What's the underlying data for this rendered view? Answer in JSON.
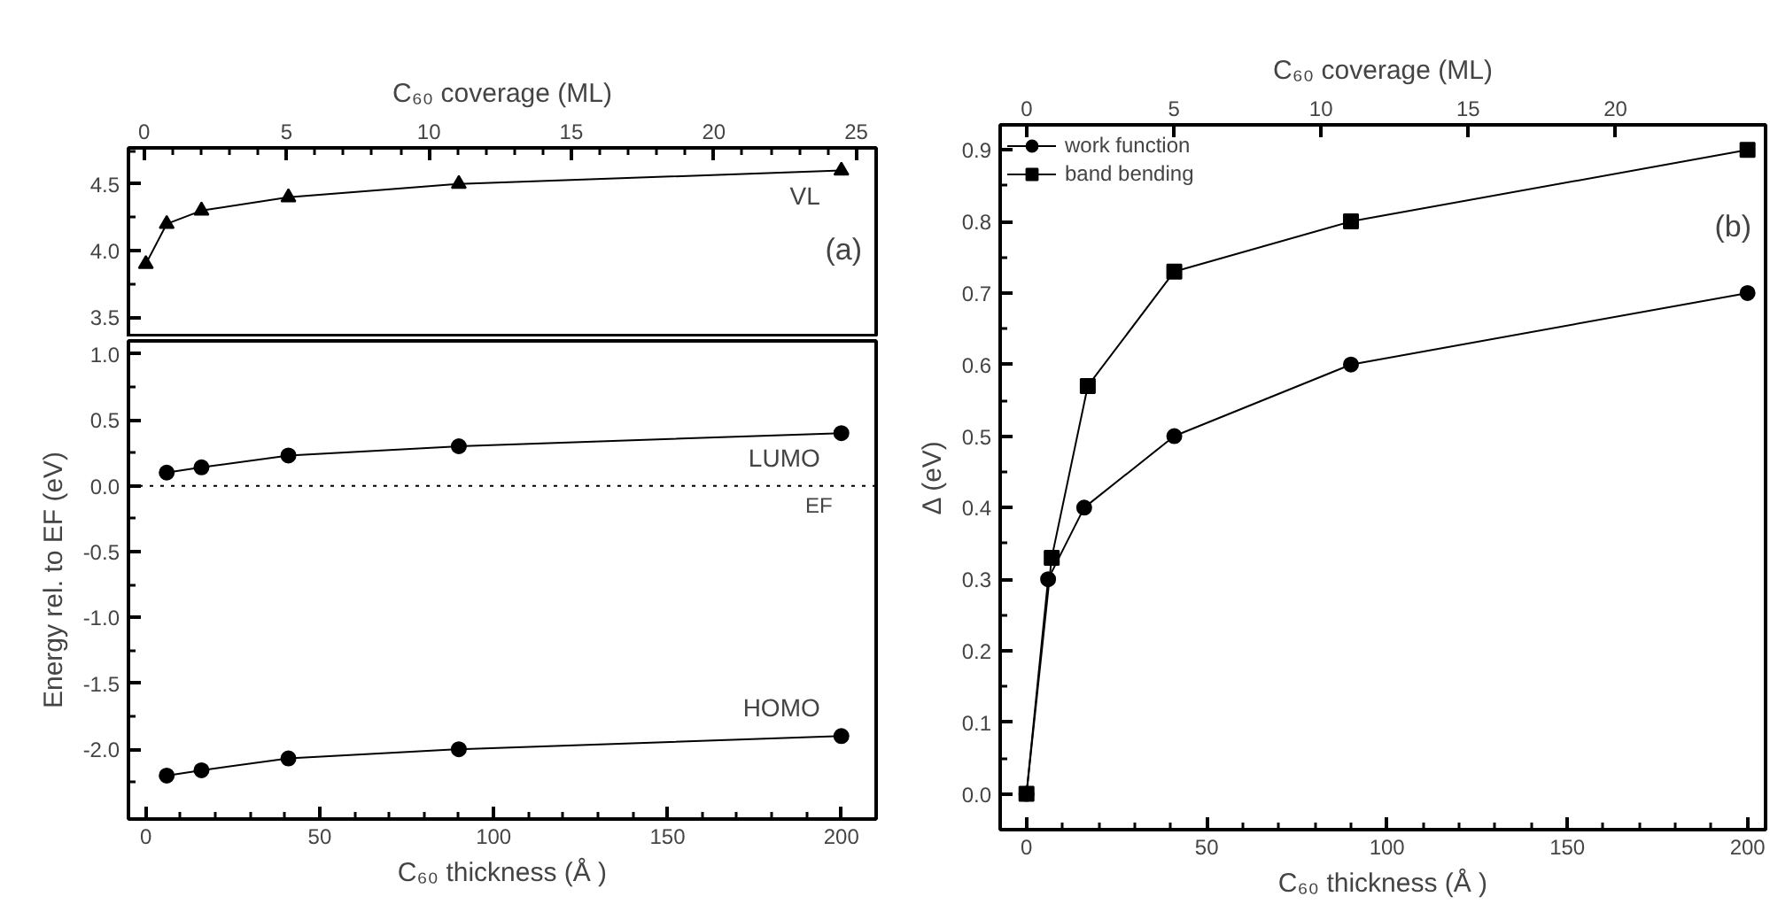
{
  "chart_data": [
    {
      "type": "line",
      "x2label": "C₆₀ coverage (ML)",
      "xlim": [
        -5,
        210
      ],
      "x2lim": [
        -0.55,
        25.7
      ],
      "x2ticks": [
        0,
        {
          "value": 1,
          "label": null
        },
        {
          "value": 2,
          "label": null
        },
        {
          "value": 3,
          "label": null
        },
        {
          "value": 4,
          "label": null
        },
        5,
        {
          "value": 6,
          "label": null
        },
        {
          "value": 7,
          "label": null
        },
        {
          "value": 8,
          "label": null
        },
        {
          "value": 9,
          "label": null
        },
        10,
        {
          "value": 11,
          "label": null
        },
        {
          "value": 12,
          "label": null
        },
        {
          "value": 13,
          "label": null
        },
        {
          "value": 14,
          "label": null
        },
        15,
        {
          "value": 16,
          "label": null
        },
        {
          "value": 17,
          "label": null
        },
        {
          "value": 18,
          "label": null
        },
        {
          "value": 19,
          "label": null
        },
        20,
        {
          "value": 21,
          "label": null
        },
        {
          "value": 22,
          "label": null
        },
        {
          "value": 23,
          "label": null
        },
        {
          "value": 24,
          "label": null
        },
        25
      ],
      "ylim": [
        3.35,
        4.77
      ],
      "yticks": [
        {
          "value": 3.5,
          "label": "3.5"
        },
        {
          "value": 3.75,
          "label": null
        },
        {
          "value": 4.0,
          "label": "4.0"
        },
        {
          "value": 4.25,
          "label": null
        },
        {
          "value": 4.5,
          "label": "4.5"
        },
        {
          "value": 4.75,
          "label": null
        }
      ],
      "series": [
        {
          "color": "#000000",
          "marker": "triangle",
          "x": [
            0,
            6,
            16,
            41,
            90,
            200
          ],
          "values": [
            3.9,
            4.2,
            4.3,
            4.4,
            4.5,
            4.6
          ]
        }
      ],
      "annotations": [
        "VL",
        "(a)"
      ]
    },
    {
      "type": "line",
      "xlabel": "C₆₀ thickness (Å )",
      "ylabel": "Energy rel. to EF (eV)",
      "xlim": [
        -5,
        210
      ],
      "xticks": [
        0,
        {
          "value": 10,
          "label": null
        },
        {
          "value": 20,
          "label": null
        },
        {
          "value": 30,
          "label": null
        },
        {
          "value": 40,
          "label": null
        },
        50,
        {
          "value": 60,
          "label": null
        },
        {
          "value": 70,
          "label": null
        },
        {
          "value": 80,
          "label": null
        },
        {
          "value": 90,
          "label": null
        },
        100,
        {
          "value": 110,
          "label": null
        },
        {
          "value": 120,
          "label": null
        },
        {
          "value": 130,
          "label": null
        },
        {
          "value": 140,
          "label": null
        },
        150,
        {
          "value": 160,
          "label": null
        },
        {
          "value": 170,
          "label": null
        },
        {
          "value": 180,
          "label": null
        },
        {
          "value": 190,
          "label": null
        },
        200
      ],
      "ylim": [
        -2.53,
        1.1
      ],
      "yticks": [
        {
          "value": -2.25,
          "label": null
        },
        {
          "value": -2.0,
          "label": "-2.0"
        },
        {
          "value": -1.75,
          "label": null
        },
        {
          "value": -1.5,
          "label": "-1.5"
        },
        {
          "value": -1.25,
          "label": null
        },
        {
          "value": -1.0,
          "label": "-1.0"
        },
        {
          "value": -0.75,
          "label": null
        },
        {
          "value": -0.5,
          "label": "-0.5"
        },
        {
          "value": -0.25,
          "label": null
        },
        {
          "value": 0,
          "label": "0.0"
        },
        {
          "value": 0.25,
          "label": null
        },
        {
          "value": 0.5,
          "label": "0.5"
        },
        {
          "value": 0.75,
          "label": null
        },
        {
          "value": 1.0,
          "label": "1.0"
        }
      ],
      "series": [
        {
          "color": "#000000",
          "marker": "circle",
          "x": [
            6,
            16,
            41,
            90,
            200
          ],
          "values": [
            0.1,
            0.14,
            0.23,
            0.3,
            0.4
          ]
        },
        {
          "color": "#000000",
          "marker": "circle",
          "x": [
            6,
            16,
            41,
            90,
            200
          ],
          "values": [
            -2.2,
            -2.16,
            -2.07,
            -2.0,
            -1.9
          ]
        }
      ],
      "ref_lines": [
        {
          "axis": "y",
          "value": 0,
          "label": "EF",
          "line_style": "dotted",
          "color": "#000000"
        }
      ],
      "annotations": [
        "LUMO",
        "HOMO"
      ]
    },
    {
      "type": "line",
      "xlabel": "C₆₀ thickness (Å )",
      "x2label": "C₆₀ coverage (ML)",
      "ylabel": "Δ (eV)",
      "legend": "top left",
      "xlim": [
        -7.3,
        205
      ],
      "x2lim": [
        -0.9,
        25.1
      ],
      "xticks": [
        0,
        {
          "value": 10,
          "label": null
        },
        {
          "value": 20,
          "label": null
        },
        {
          "value": 30,
          "label": null
        },
        {
          "value": 40,
          "label": null
        },
        50,
        {
          "value": 60,
          "label": null
        },
        {
          "value": 70,
          "label": null
        },
        {
          "value": 80,
          "label": null
        },
        {
          "value": 90,
          "label": null
        },
        100,
        {
          "value": 110,
          "label": null
        },
        {
          "value": 120,
          "label": null
        },
        {
          "value": 130,
          "label": null
        },
        {
          "value": 140,
          "label": null
        },
        150,
        {
          "value": 160,
          "label": null
        },
        {
          "value": 170,
          "label": null
        },
        {
          "value": 180,
          "label": null
        },
        {
          "value": 190,
          "label": null
        },
        200
      ],
      "x2ticks": [
        0,
        5,
        10,
        15,
        20
      ],
      "ylim": [
        -0.05,
        0.935
      ],
      "yticks": [
        {
          "value": 0,
          "label": "0.0"
        },
        {
          "value": 0.05,
          "label": null
        },
        0.1,
        {
          "value": 0.15,
          "label": null
        },
        0.2,
        {
          "value": 0.25,
          "label": null
        },
        0.3,
        {
          "value": 0.35,
          "label": null
        },
        0.4,
        {
          "value": 0.45,
          "label": null
        },
        0.5,
        {
          "value": 0.55,
          "label": null
        },
        0.6,
        {
          "value": 0.65,
          "label": null
        },
        0.7,
        {
          "value": 0.75,
          "label": null
        },
        0.8,
        {
          "value": 0.85,
          "label": null
        },
        0.9
      ],
      "series": [
        {
          "name": "work function",
          "color": "#000000",
          "marker": "circle",
          "x": [
            0,
            6,
            16,
            41,
            90,
            200
          ],
          "values": [
            0,
            0.3,
            0.4,
            0.5,
            0.6,
            0.7
          ]
        },
        {
          "name": "band bending",
          "color": "#000000",
          "marker": "square",
          "x": [
            0,
            7,
            17,
            41,
            90,
            200
          ],
          "values": [
            0,
            0.33,
            0.57,
            0.73,
            0.8,
            0.9
          ]
        }
      ],
      "annotations": [
        "(b)"
      ]
    }
  ]
}
